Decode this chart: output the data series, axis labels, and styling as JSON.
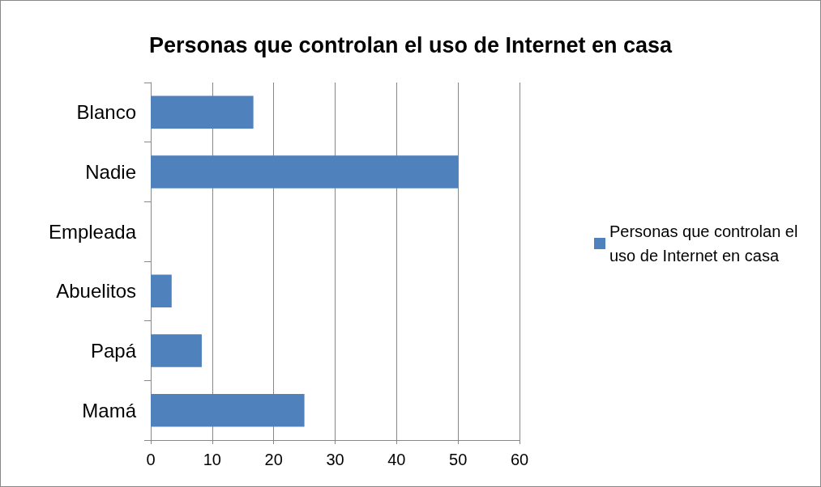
{
  "chart_data": {
    "type": "bar",
    "title": "Personas que controlan el uso de Internet en casa",
    "orientation": "horizontal",
    "categories": [
      "Blanco",
      "Nadie",
      "Empleada",
      "Abuelitos",
      "Papá",
      "Mamá"
    ],
    "series": [
      {
        "name": "Personas que controlan el uso de Internet en casa",
        "color": "#4f81bd",
        "values": [
          16.7,
          50,
          0,
          3.4,
          8.3,
          25
        ]
      }
    ],
    "xlim": [
      0,
      60
    ],
    "xticks": [
      0,
      10,
      20,
      30,
      40,
      50,
      60
    ],
    "grid": "x",
    "legend": "right"
  }
}
